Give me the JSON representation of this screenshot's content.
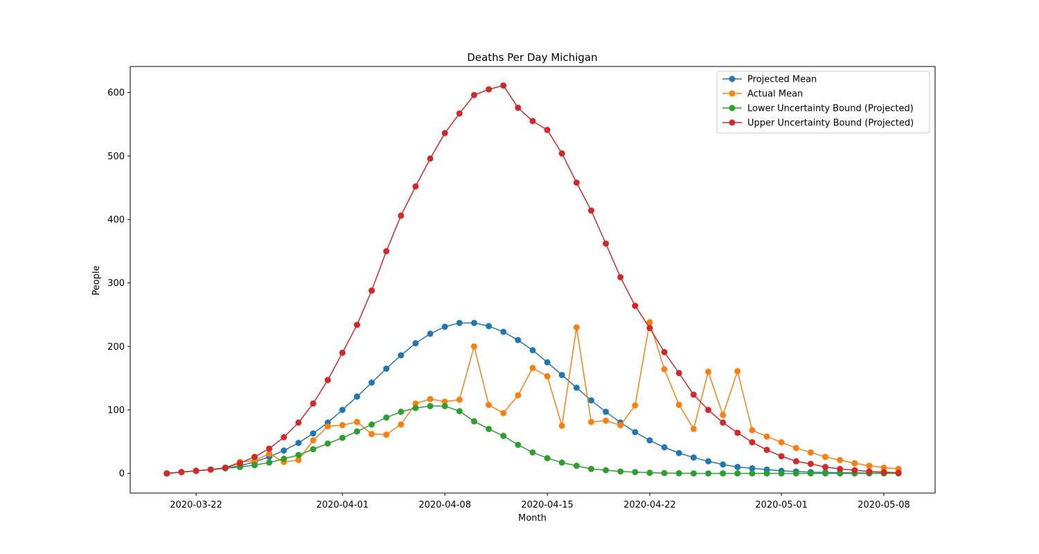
{
  "chart_data": {
    "type": "line",
    "title": "Deaths Per Day Michigan",
    "xlabel": "Month",
    "ylabel": "People",
    "x_start": "2020-03-20",
    "x": [
      "2020-03-20",
      "2020-03-21",
      "2020-03-22",
      "2020-03-23",
      "2020-03-24",
      "2020-03-25",
      "2020-03-26",
      "2020-03-27",
      "2020-03-28",
      "2020-03-29",
      "2020-03-30",
      "2020-03-31",
      "2020-04-01",
      "2020-04-02",
      "2020-04-03",
      "2020-04-04",
      "2020-04-05",
      "2020-04-06",
      "2020-04-07",
      "2020-04-08",
      "2020-04-09",
      "2020-04-10",
      "2020-04-11",
      "2020-04-12",
      "2020-04-13",
      "2020-04-14",
      "2020-04-15",
      "2020-04-16",
      "2020-04-17",
      "2020-04-18",
      "2020-04-19",
      "2020-04-20",
      "2020-04-21",
      "2020-04-22",
      "2020-04-23",
      "2020-04-24",
      "2020-04-25",
      "2020-04-26",
      "2020-04-27",
      "2020-04-28",
      "2020-04-29",
      "2020-04-30",
      "2020-05-01",
      "2020-05-02",
      "2020-05-03",
      "2020-05-04",
      "2020-05-05",
      "2020-05-06",
      "2020-05-07",
      "2020-05-08",
      "2020-05-09"
    ],
    "xlim": [
      "2020-03-17T12:00",
      "2020-05-11T12:00"
    ],
    "ylim": [
      -31,
      641
    ],
    "xticks": [
      "2020-03-22",
      "2020-04-01",
      "2020-04-08",
      "2020-04-15",
      "2020-04-22",
      "2020-05-01",
      "2020-05-08"
    ],
    "yticks": [
      0,
      100,
      200,
      300,
      400,
      500,
      600
    ],
    "grid": false,
    "legend_position": "top-right",
    "series": [
      {
        "name": "Projected Mean",
        "color": "#1f77b4",
        "values": [
          0,
          2,
          4,
          6,
          8,
          12,
          18,
          26,
          36,
          48,
          63,
          80,
          100,
          121,
          143,
          165,
          186,
          205,
          220,
          231,
          237,
          237,
          232,
          223,
          210,
          194,
          175,
          155,
          135,
          115,
          97,
          80,
          65,
          52,
          41,
          32,
          25,
          19,
          14,
          10,
          8,
          6,
          4,
          3,
          2,
          1.5,
          1,
          0.8,
          0.5,
          0.3,
          0.2
        ]
      },
      {
        "name": "Actual Mean",
        "color": "#ff7f0e",
        "values": [
          0,
          2,
          4,
          6,
          9,
          18,
          20,
          31,
          18,
          21,
          52,
          74,
          76,
          81,
          62,
          61,
          77,
          110,
          117,
          113,
          116,
          200,
          108,
          95,
          123,
          166,
          153,
          75,
          230,
          81,
          83,
          76,
          107,
          238,
          164,
          108,
          70,
          160,
          92,
          161,
          68,
          58,
          49,
          40,
          33,
          26,
          21,
          16,
          12,
          9,
          7
        ]
      },
      {
        "name": "Lower Uncertainty Bound (Projected)",
        "color": "#2ca02c",
        "values": [
          0,
          2,
          4,
          6,
          8,
          10,
          13,
          17,
          23,
          29,
          38,
          47,
          56,
          66,
          77,
          88,
          97,
          103,
          106,
          106,
          98,
          82,
          70,
          59,
          45,
          33,
          24,
          17,
          12,
          7,
          5,
          3,
          2,
          1,
          0.5,
          0.2,
          0,
          0,
          0,
          0,
          0,
          0,
          0,
          0,
          0,
          0,
          0,
          0,
          0,
          0,
          0
        ]
      },
      {
        "name": "Upper Uncertainty Bound (Projected)",
        "color": "#d62728",
        "values": [
          0,
          2,
          4,
          6,
          9,
          16,
          26,
          39,
          57,
          80,
          110,
          147,
          190,
          234,
          288,
          350,
          406,
          452,
          496,
          536,
          567,
          596,
          605,
          611,
          576,
          555,
          541,
          504,
          458,
          414,
          362,
          309,
          264,
          229,
          191,
          158,
          124,
          100,
          80,
          64,
          49,
          37,
          27,
          19,
          15,
          10,
          7,
          5,
          3,
          2,
          1
        ]
      }
    ]
  }
}
